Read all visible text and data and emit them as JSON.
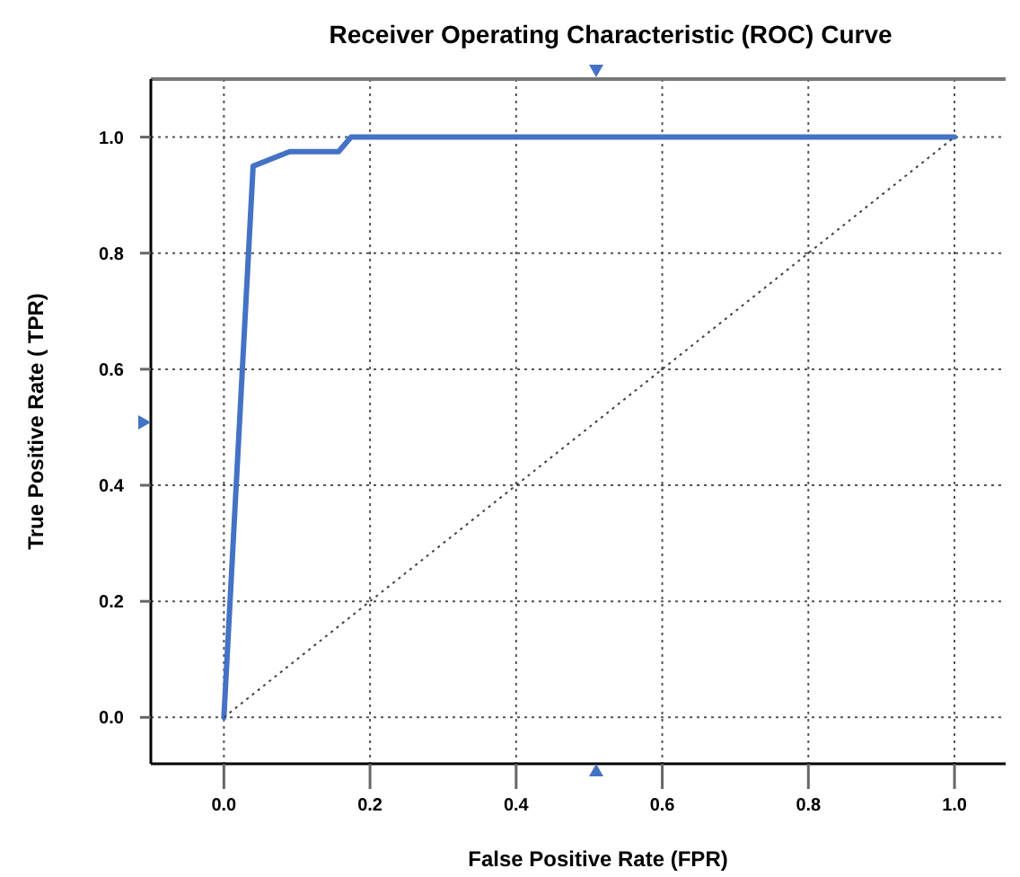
{
  "chart_data": {
    "type": "line",
    "title": "Receiver Operating Characteristic (ROC) Curve",
    "xlabel": "False Positive Rate (FPR)",
    "ylabel": "True Positive Rate ( TPR)",
    "series": [
      {
        "color": "#4472c4",
        "x": [
          0,
          0.04,
          0.09,
          0.157,
          0.174,
          1.0
        ],
        "values": [
          0,
          0.95,
          0.975,
          0.975,
          1.0,
          1.0
        ],
        "line_style": "solid"
      },
      {
        "color": "#404040",
        "x": [
          0,
          1
        ],
        "values": [
          0,
          1
        ],
        "line_style": "dotted"
      }
    ],
    "xlim": [
      -0.1,
      1.07
    ],
    "ylim": [
      -0.08,
      1.1
    ],
    "xticks": [
      {
        "value": 0,
        "label": "0.0"
      },
      {
        "value": 0.2,
        "label": "0.2"
      },
      {
        "value": 0.4,
        "label": "0.4"
      },
      {
        "value": 0.6,
        "label": "0.6"
      },
      {
        "value": 0.8,
        "label": "0.8"
      },
      {
        "value": 1,
        "label": "1.0"
      }
    ],
    "yticks": [
      {
        "value": 0,
        "label": "0.0"
      },
      {
        "value": 0.2,
        "label": "0.2"
      },
      {
        "value": 0.4,
        "label": "0.4"
      },
      {
        "value": 0.6,
        "label": "0.6"
      },
      {
        "value": 0.8,
        "label": "0.8"
      },
      {
        "value": 1,
        "label": "1.0"
      }
    ],
    "grid": true,
    "marker": "none"
  }
}
